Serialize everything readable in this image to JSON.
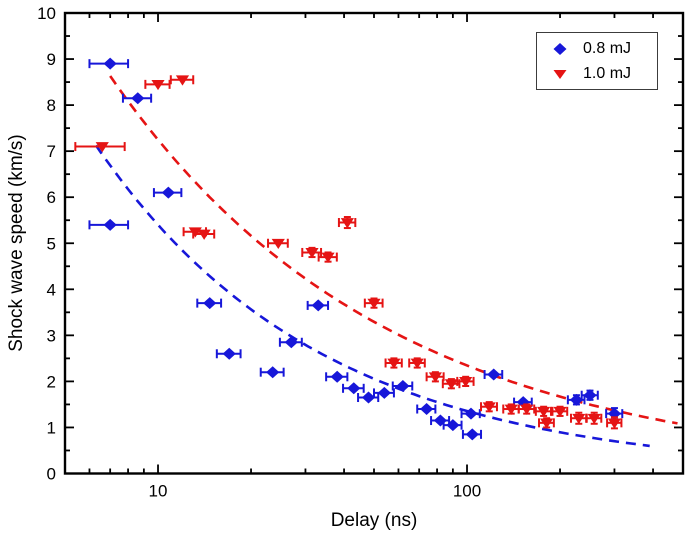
{
  "figure": {
    "background": "#ffffff"
  },
  "axes": {
    "x": {
      "label": "Delay (ns)",
      "scale": "log",
      "min": 5,
      "max": 500,
      "major_ticks": [
        10,
        100
      ],
      "major_tick_labels": [
        "10",
        "100"
      ],
      "minor_ticks": [
        6,
        7,
        8,
        9,
        20,
        30,
        40,
        50,
        60,
        70,
        80,
        90,
        200,
        300,
        400
      ]
    },
    "y": {
      "label": "Shock wave speed (km/s)",
      "scale": "linear",
      "min": 0,
      "max": 10,
      "major_tick_step": 1,
      "minor_tick_step": 0.5
    }
  },
  "legend": {
    "position": "top-right",
    "entries": [
      {
        "label": "0.8 mJ",
        "marker": "diamond",
        "color": "#1717d9"
      },
      {
        "label": "1.0 mJ",
        "marker": "triangle-down",
        "color": "#e51414"
      }
    ]
  },
  "chart_data": {
    "type": "scatter",
    "title": "",
    "xlabel": "Delay (ns)",
    "ylabel": "Shock wave speed (km/s)",
    "x_scale": "log",
    "x_range": [
      5,
      500
    ],
    "y_range": [
      0,
      10
    ],
    "grid": false,
    "legend_position": "top-right",
    "series": [
      {
        "name": "0.8 mJ",
        "color": "#1717d9",
        "marker": "diamond",
        "error_bars": "x (and small y on far-right points)",
        "points_format": [
          "delay_ns",
          "speed_km_s",
          "xerr_ns",
          "yerr_km_s"
        ],
        "points": [
          [
            7.0,
            8.9,
            1.0,
            0
          ],
          [
            8.6,
            8.15,
            0.9,
            0
          ],
          [
            7.0,
            5.4,
            1.0,
            0
          ],
          [
            10.8,
            6.1,
            1.1,
            0
          ],
          [
            14.7,
            3.7,
            1.3,
            0
          ],
          [
            17.0,
            2.6,
            1.5,
            0
          ],
          [
            23.5,
            2.2,
            2.0,
            0
          ],
          [
            27.0,
            2.85,
            2.2,
            0
          ],
          [
            33.0,
            3.65,
            2.5,
            0
          ],
          [
            38.0,
            2.1,
            3.0,
            0
          ],
          [
            43.0,
            1.85,
            3.3,
            0
          ],
          [
            48.0,
            1.65,
            3.6,
            0
          ],
          [
            54.0,
            1.75,
            4.0,
            0
          ],
          [
            62.0,
            1.9,
            4.5,
            0
          ],
          [
            74.0,
            1.4,
            5.0,
            0
          ],
          [
            82.0,
            1.15,
            5.5,
            0
          ],
          [
            90.0,
            1.05,
            6.0,
            0
          ],
          [
            103.0,
            1.3,
            7.0,
            0
          ],
          [
            104.0,
            0.85,
            7.0,
            0
          ],
          [
            122.0,
            2.15,
            8.0,
            0
          ],
          [
            152.0,
            1.55,
            10.0,
            0
          ],
          [
            226.0,
            1.6,
            14.0,
            0.1
          ],
          [
            250.0,
            1.7,
            15.0,
            0.1
          ],
          [
            300.0,
            1.3,
            18.0,
            0.12
          ]
        ],
        "fit_curve": {
          "style": "dashed",
          "model": "power_law v = A * t^(-alpha)",
          "A": 21.5,
          "alpha": 0.6,
          "t_start": 6.3,
          "t_end": 390
        }
      },
      {
        "name": "1.0 mJ",
        "color": "#e51414",
        "marker": "triangle-down",
        "error_bars": "x (and small y on mid/right points)",
        "points_format": [
          "delay_ns",
          "speed_km_s",
          "xerr_ns",
          "yerr_km_s"
        ],
        "points": [
          [
            6.6,
            7.1,
            1.2,
            0
          ],
          [
            10.0,
            8.45,
            0.9,
            0
          ],
          [
            12.0,
            8.55,
            1.0,
            0
          ],
          [
            13.2,
            5.25,
            1.1,
            0
          ],
          [
            14.1,
            5.2,
            1.1,
            0
          ],
          [
            24.5,
            5.0,
            1.8,
            0
          ],
          [
            31.5,
            4.8,
            2.2,
            0.1
          ],
          [
            35.5,
            4.7,
            2.4,
            0.1
          ],
          [
            41.0,
            5.45,
            2.5,
            0.12
          ],
          [
            50.0,
            3.7,
            3.3,
            0.1
          ],
          [
            58.0,
            2.4,
            3.5,
            0.1
          ],
          [
            69.0,
            2.4,
            4.0,
            0.1
          ],
          [
            79.0,
            2.1,
            5.0,
            0.1
          ],
          [
            89.0,
            1.95,
            5.5,
            0.1
          ],
          [
            99.0,
            2.0,
            6.0,
            0.1
          ],
          [
            118.0,
            1.45,
            7.0,
            0.1
          ],
          [
            139.0,
            1.4,
            8.0,
            0.1
          ],
          [
            156.0,
            1.4,
            9.0,
            0.1
          ],
          [
            177.0,
            1.35,
            10.0,
            0.1
          ],
          [
            181.0,
            1.1,
            10.0,
            0.1
          ],
          [
            200.0,
            1.35,
            11.0,
            0.1
          ],
          [
            230.0,
            1.2,
            13.0,
            0.12
          ],
          [
            258.0,
            1.2,
            14.0,
            0.12
          ],
          [
            300.0,
            1.1,
            16.0,
            0.12
          ]
        ],
        "fit_curve": {
          "style": "dashed",
          "model": "power_law v = A * t^(-alpha)",
          "A": 22.4,
          "alpha": 0.49,
          "t_start": 7.0,
          "t_end": 480
        }
      }
    ]
  }
}
